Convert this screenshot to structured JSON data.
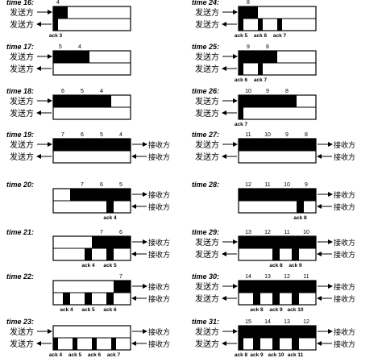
{
  "sender": "发送方",
  "receiver": "接收方",
  "panels": [
    {
      "time": "time 16:",
      "top_labels": [
        "4"
      ],
      "top_fill": [
        [
          0,
          0.1875
        ]
      ],
      "bottom_fill": [
        [
          0,
          0.0625
        ]
      ],
      "ack_labels": [
        "ack 3"
      ],
      "left_arrows": true,
      "right_arrows": false
    },
    {
      "time": "time 17:",
      "top_labels": [
        "5",
        "4"
      ],
      "top_fill": [
        [
          0,
          0.4688
        ]
      ],
      "bottom_fill": [],
      "ack_labels": [],
      "left_arrows": true,
      "right_arrows": false
    },
    {
      "time": "time 18:",
      "top_labels": [
        "6",
        "5",
        "4"
      ],
      "top_fill": [
        [
          0,
          0.75
        ]
      ],
      "bottom_fill": [],
      "ack_labels": [],
      "left_arrows": true,
      "right_arrows": false
    },
    {
      "time": "time 19:",
      "top_labels": [
        "7",
        "6",
        "5",
        "4"
      ],
      "top_fill": [
        [
          0,
          1
        ]
      ],
      "bottom_fill": [],
      "ack_labels": [],
      "left_arrows": true,
      "right_arrows": true
    },
    {
      "time": "time 20:",
      "top_labels": [
        "7",
        "6",
        "5"
      ],
      "top_fill": [
        [
          0.2188,
          1
        ]
      ],
      "bottom_fill": [
        [
          0.6875,
          0.7813
        ]
      ],
      "ack_labels": [
        "ack 4"
      ],
      "left_arrows": false,
      "right_arrows": true
    },
    {
      "time": "time 21:",
      "top_labels": [
        "7",
        "6"
      ],
      "top_fill": [
        [
          0.5,
          1
        ]
      ],
      "bottom_fill": [
        [
          0.4063,
          0.5
        ],
        [
          0.6875,
          0.7813
        ]
      ],
      "ack_labels": [
        "ack 4",
        "ack 5"
      ],
      "left_arrows": false,
      "right_arrows": true
    },
    {
      "time": "time 22:",
      "top_labels": [
        "7"
      ],
      "top_fill": [
        [
          0.7813,
          1
        ]
      ],
      "bottom_fill": [
        [
          0.125,
          0.2188
        ],
        [
          0.4063,
          0.5
        ],
        [
          0.6875,
          0.7813
        ]
      ],
      "ack_labels": [
        "ack 4",
        "ack 5",
        "ack 6"
      ],
      "left_arrows": false,
      "right_arrows": true
    },
    {
      "time": "time 23:",
      "top_labels": [],
      "top_fill": [],
      "bottom_fill": [
        [
          0,
          0.0625
        ],
        [
          0.25,
          0.3125
        ],
        [
          0.5,
          0.5625
        ],
        [
          0.75,
          0.8125
        ]
      ],
      "ack_labels": [
        "ack 4",
        "ack 5",
        "ack 6",
        "ack 7"
      ],
      "left_arrows": true,
      "right_arrows": true
    },
    {
      "time": "time 24:",
      "top_labels": [
        "8"
      ],
      "top_fill": [
        [
          0,
          0.25
        ]
      ],
      "bottom_fill": [
        [
          0,
          0.0625
        ],
        [
          0.25,
          0.3125
        ],
        [
          0.5,
          0.5625
        ]
      ],
      "ack_labels": [
        "ack 5",
        "ack 6",
        "ack 7"
      ],
      "left_arrows": true,
      "right_arrows": false
    },
    {
      "time": "time 25:",
      "top_labels": [
        "9",
        "8"
      ],
      "top_fill": [
        [
          0,
          0.5
        ]
      ],
      "bottom_fill": [
        [
          0,
          0.0625
        ],
        [
          0.25,
          0.3125
        ]
      ],
      "ack_labels": [
        "ack 6",
        "ack 7"
      ],
      "left_arrows": true,
      "right_arrows": false
    },
    {
      "time": "time 26:",
      "top_labels": [
        "10",
        "9",
        "8"
      ],
      "top_fill": [
        [
          0,
          0.75
        ]
      ],
      "bottom_fill": [
        [
          0,
          0.0625
        ]
      ],
      "ack_labels": [
        "ack 7"
      ],
      "left_arrows": true,
      "right_arrows": false
    },
    {
      "time": "time 27:",
      "top_labels": [
        "11",
        "10",
        "9",
        "8"
      ],
      "top_fill": [
        [
          0,
          1
        ]
      ],
      "bottom_fill": [],
      "ack_labels": [],
      "left_arrows": true,
      "right_arrows": true
    },
    {
      "time": "time 28:",
      "top_labels": [
        "12",
        "11",
        "10",
        "9"
      ],
      "top_fill": [
        [
          0,
          1
        ]
      ],
      "bottom_fill": [
        [
          0.75,
          0.8438
        ]
      ],
      "ack_labels": [
        "ack 8"
      ],
      "left_arrows": false,
      "right_arrows": true
    },
    {
      "time": "time 29:",
      "top_labels": [
        "13",
        "12",
        "11",
        "10"
      ],
      "top_fill": [
        [
          0,
          1
        ]
      ],
      "bottom_fill": [
        [
          0.4375,
          0.5313
        ],
        [
          0.6875,
          0.7813
        ]
      ],
      "ack_labels": [
        "ack 8",
        "ack 9"
      ],
      "left_arrows": true,
      "right_arrows": true
    },
    {
      "time": "time 30:",
      "top_labels": [
        "14",
        "13",
        "12",
        "11"
      ],
      "top_fill": [
        [
          0,
          1
        ]
      ],
      "bottom_fill": [
        [
          0.1875,
          0.2813
        ],
        [
          0.4375,
          0.5313
        ],
        [
          0.6875,
          0.7813
        ]
      ],
      "ack_labels": [
        "ack 8",
        "ack 9",
        "ack 10"
      ],
      "left_arrows": true,
      "right_arrows": true
    },
    {
      "time": "time 31:",
      "top_labels": [
        "15",
        "14",
        "13",
        "12"
      ],
      "top_fill": [
        [
          0,
          1
        ]
      ],
      "bottom_fill": [
        [
          0,
          0.0625
        ],
        [
          0.1875,
          0.2813
        ],
        [
          0.4375,
          0.5313
        ],
        [
          0.6875,
          0.7813
        ]
      ],
      "ack_labels": [
        "ack 8",
        "ack 9",
        "ack 10",
        "ack 11"
      ],
      "left_arrows": true,
      "right_arrows": true
    }
  ]
}
